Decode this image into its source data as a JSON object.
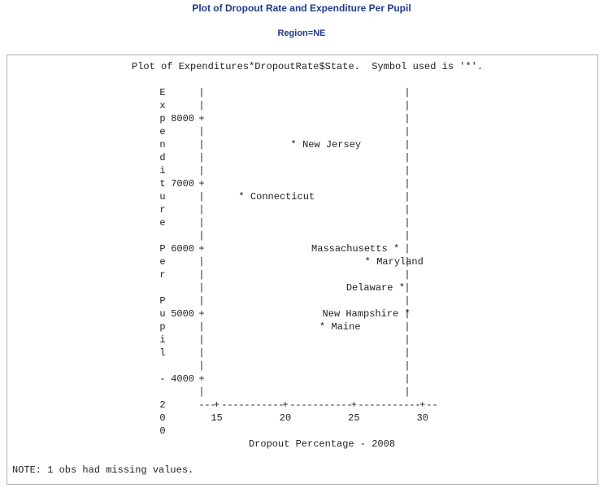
{
  "chart_data": {
    "type": "scatter",
    "title": "Plot of Dropout Rate and Expenditure Per Pupil",
    "subtitle": "Region=NE",
    "plot_header": "Plot of Expenditures*DropoutRate$State.  Symbol used is '*'.",
    "symbol": "*",
    "x_label": "Dropout Percentage - 2008",
    "y_label": "Expenditure Per Pupil - 200",
    "note": "NOTE: 1 obs had missing values.",
    "xlim": [
      13.9,
      31.2
    ],
    "xticks": [
      15,
      20,
      25,
      30
    ],
    "ylim": [
      3800,
      8400
    ],
    "yticks": [
      4000,
      5000,
      6000,
      7000,
      8000
    ],
    "color": "#9b4f72",
    "points": [
      {
        "label": "New Jersey",
        "x": 20.6,
        "y": 7600,
        "label_side": "right"
      },
      {
        "label": "Connecticut",
        "x": 16.8,
        "y": 6800,
        "label_side": "right"
      },
      {
        "label": "Massachusetts",
        "x": 28.1,
        "y": 6000,
        "label_side": "left"
      },
      {
        "label": "Maryland",
        "x": 26.0,
        "y": 5800,
        "label_side": "right"
      },
      {
        "label": "Delaware",
        "x": 28.5,
        "y": 5400,
        "label_side": "left"
      },
      {
        "label": "New Hampshire",
        "x": 28.9,
        "y": 5000,
        "label_side": "left"
      },
      {
        "label": "Maine",
        "x": 22.7,
        "y": 4800,
        "label_side": "right"
      }
    ]
  }
}
